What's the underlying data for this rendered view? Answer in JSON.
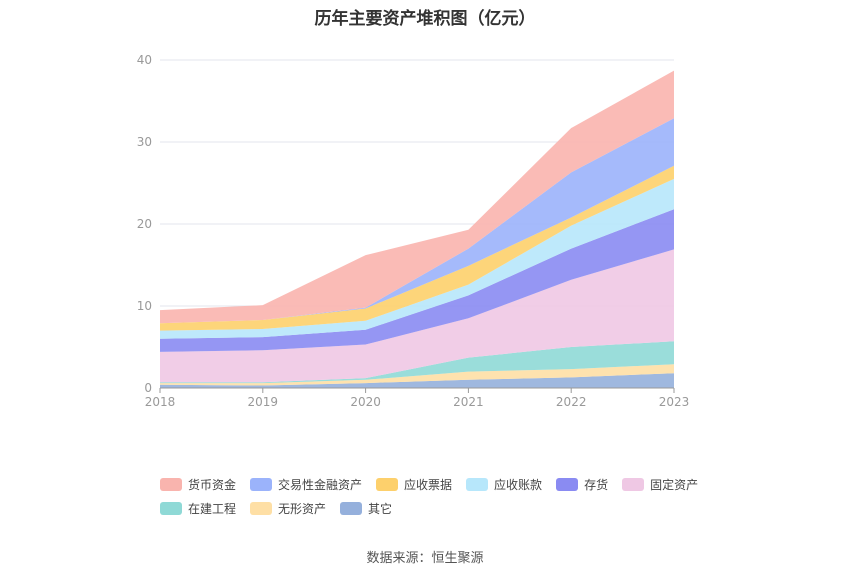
{
  "chart_data": {
    "type": "area",
    "stacked": true,
    "title": "历年主要资产堆积图（亿元）",
    "x": [
      "2018",
      "2019",
      "2020",
      "2021",
      "2022",
      "2023"
    ],
    "ylim": [
      0,
      40
    ],
    "yticks": [
      0,
      10,
      20,
      30,
      40
    ],
    "grid": true,
    "legend_position": "bottom",
    "series": [
      {
        "name": "其它",
        "color": "#95b0dc",
        "values": [
          0.4,
          0.3,
          0.6,
          1.0,
          1.3,
          1.8
        ]
      },
      {
        "name": "无形资产",
        "color": "#fedfa5",
        "values": [
          0.2,
          0.3,
          0.4,
          1.0,
          1.0,
          1.1
        ]
      },
      {
        "name": "在建工程",
        "color": "#8fd9d6",
        "values": [
          0.1,
          0.1,
          0.2,
          1.7,
          2.7,
          2.8
        ]
      },
      {
        "name": "固定资产",
        "color": "#efc8e4",
        "values": [
          3.7,
          3.9,
          4.1,
          4.8,
          8.2,
          11.2
        ]
      },
      {
        "name": "存货",
        "color": "#8a8bf2",
        "values": [
          1.6,
          1.6,
          1.8,
          2.8,
          3.8,
          4.9
        ]
      },
      {
        "name": "应收账款",
        "color": "#b7e7fb",
        "values": [
          1.0,
          1.0,
          1.1,
          1.3,
          2.8,
          3.7
        ]
      },
      {
        "name": "应收票据",
        "color": "#fdd06c",
        "values": [
          0.9,
          1.1,
          1.5,
          2.3,
          1.0,
          1.6
        ]
      },
      {
        "name": "交易性金融资产",
        "color": "#9bb3fb",
        "values": [
          0.0,
          0.0,
          0.1,
          2.1,
          5.5,
          5.8
        ]
      },
      {
        "name": "货币资金",
        "color": "#f9b4ae",
        "values": [
          1.6,
          1.8,
          6.4,
          2.3,
          5.4,
          5.8
        ]
      }
    ],
    "legend_order": [
      "货币资金",
      "交易性金融资产",
      "应收票据",
      "应收账款",
      "存货",
      "固定资产",
      "在建工程",
      "无形资产",
      "其它"
    ]
  },
  "source_text": "数据来源：恒生聚源"
}
